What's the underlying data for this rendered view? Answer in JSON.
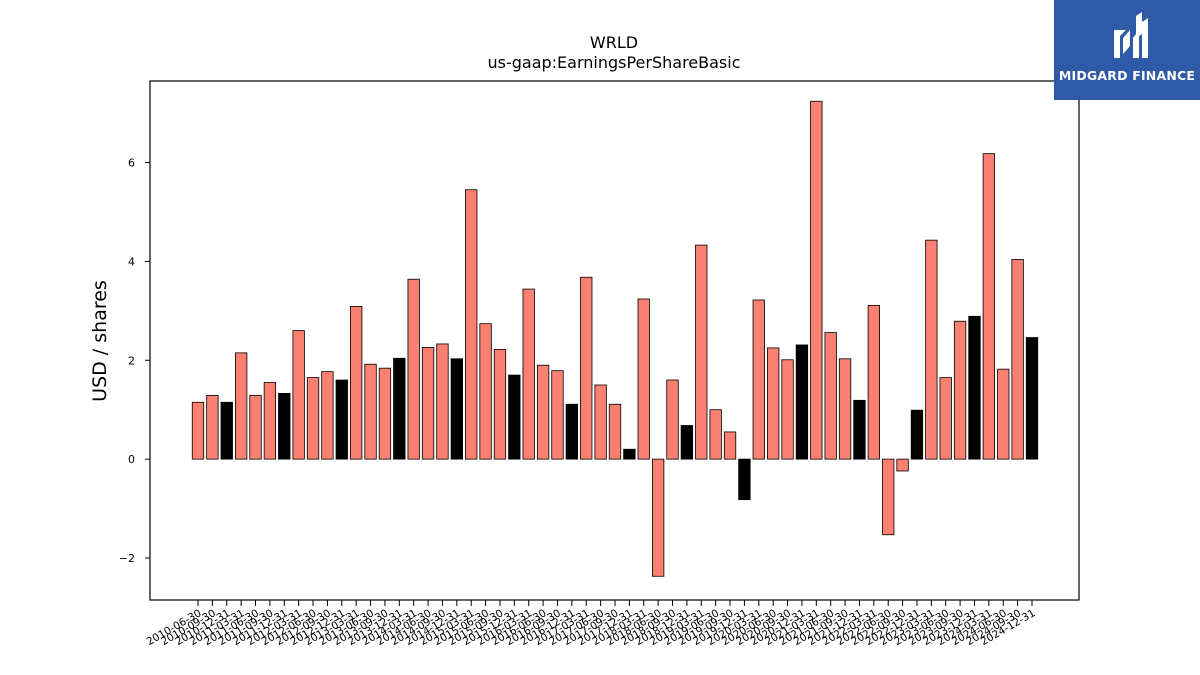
{
  "chart_data": {
    "type": "bar",
    "title": "WRLD",
    "subtitle": "us-gaap:EarningsPerShareBasic",
    "xlabel": "",
    "ylabel": "USD / shares",
    "ylim": [
      -2.85,
      7.65
    ],
    "yticks": [
      -2,
      0,
      2,
      4,
      6
    ],
    "ytick_labels": [
      "−2",
      "0",
      "2",
      "4",
      "6"
    ],
    "grid": false,
    "categories": [
      "2010-06-30",
      "2010-09-30",
      "2010-12-31",
      "2011-03-31",
      "2011-06-30",
      "2011-09-30",
      "2011-12-31",
      "2012-03-31",
      "2012-06-30",
      "2012-09-30",
      "2012-12-31",
      "2013-03-31",
      "2013-06-30",
      "2013-09-30",
      "2013-12-31",
      "2014-03-31",
      "2014-06-30",
      "2014-09-30",
      "2014-12-31",
      "2015-03-31",
      "2015-06-30",
      "2015-09-30",
      "2015-12-31",
      "2016-03-31",
      "2016-06-30",
      "2016-09-30",
      "2016-12-31",
      "2017-03-31",
      "2017-06-30",
      "2017-09-30",
      "2017-12-31",
      "2018-03-31",
      "2018-06-30",
      "2018-09-30",
      "2018-12-31",
      "2019-03-31",
      "2019-06-30",
      "2019-09-30",
      "2019-12-31",
      "2020-03-31",
      "2020-06-30",
      "2020-09-30",
      "2020-12-31",
      "2021-03-31",
      "2021-06-30",
      "2021-09-30",
      "2021-12-31",
      "2022-03-31",
      "2022-06-30",
      "2022-09-30",
      "2022-12-31",
      "2023-03-31",
      "2023-06-30",
      "2023-09-30",
      "2023-12-31",
      "2024-03-31",
      "2024-06-30",
      "2024-09-30",
      "2024-12-31"
    ],
    "values": [
      1.15,
      1.29,
      1.15,
      2.15,
      1.29,
      1.55,
      1.33,
      2.6,
      1.65,
      1.77,
      1.6,
      3.09,
      1.92,
      1.84,
      2.04,
      3.64,
      2.26,
      2.33,
      2.03,
      5.45,
      2.74,
      2.22,
      1.7,
      3.44,
      1.9,
      1.79,
      1.11,
      3.68,
      1.5,
      1.11,
      0.2,
      3.24,
      -2.37,
      1.6,
      0.68,
      4.33,
      1.0,
      0.55,
      -0.82,
      3.22,
      2.25,
      2.01,
      2.31,
      7.24,
      2.56,
      2.03,
      1.19,
      3.11,
      -1.53,
      -0.24,
      0.99,
      4.43,
      1.65,
      2.79,
      2.89,
      6.18,
      1.82,
      4.04,
      2.46
    ],
    "colors": [
      "#fa8072",
      "#fa8072",
      "#000000",
      "#fa8072",
      "#fa8072",
      "#fa8072",
      "#000000",
      "#fa8072",
      "#fa8072",
      "#fa8072",
      "#000000",
      "#fa8072",
      "#fa8072",
      "#fa8072",
      "#000000",
      "#fa8072",
      "#fa8072",
      "#fa8072",
      "#000000",
      "#fa8072",
      "#fa8072",
      "#fa8072",
      "#000000",
      "#fa8072",
      "#fa8072",
      "#fa8072",
      "#000000",
      "#fa8072",
      "#fa8072",
      "#fa8072",
      "#000000",
      "#fa8072",
      "#fa8072",
      "#fa8072",
      "#000000",
      "#fa8072",
      "#fa8072",
      "#fa8072",
      "#000000",
      "#fa8072",
      "#fa8072",
      "#fa8072",
      "#000000",
      "#fa8072",
      "#fa8072",
      "#fa8072",
      "#000000",
      "#fa8072",
      "#fa8072",
      "#fa8072",
      "#000000",
      "#fa8072",
      "#fa8072",
      "#fa8072",
      "#000000",
      "#fa8072",
      "#fa8072",
      "#fa8072",
      "#000000"
    ]
  },
  "logo": {
    "text": "MIDGARD FINANCE",
    "background": "#2f5aa8"
  }
}
